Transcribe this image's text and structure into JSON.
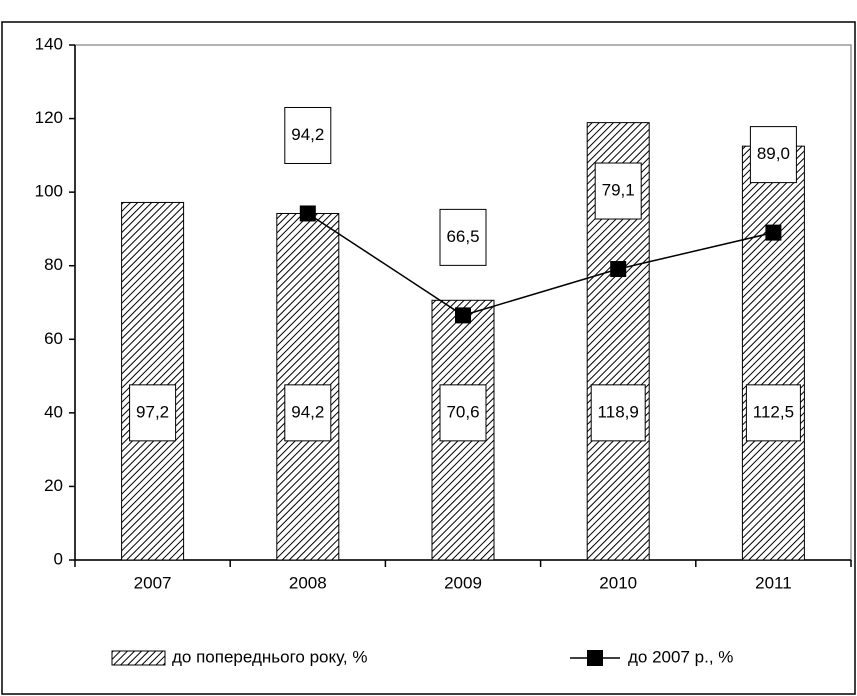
{
  "chart_data": {
    "type": "bar",
    "categories": [
      "2007",
      "2008",
      "2009",
      "2010",
      "2011"
    ],
    "series": [
      {
        "name": "до попереднього року, %",
        "type": "bar",
        "color": "#000000",
        "values": [
          97.2,
          94.2,
          70.6,
          118.9,
          112.5
        ],
        "value_labels": [
          "97,2",
          "94,2",
          "70,6",
          "118,9",
          "112,5"
        ]
      },
      {
        "name": "до 2007 р., %",
        "type": "line",
        "color": "#000000",
        "values": [
          null,
          94.2,
          66.5,
          79.1,
          89.0
        ],
        "value_labels": [
          null,
          "94,2",
          "66,5",
          "79,1",
          "89,0"
        ]
      }
    ],
    "ylim": [
      0,
      140
    ],
    "yticks": [
      0,
      20,
      40,
      60,
      80,
      100,
      120,
      140
    ],
    "grid": false,
    "legend": "bottom"
  }
}
